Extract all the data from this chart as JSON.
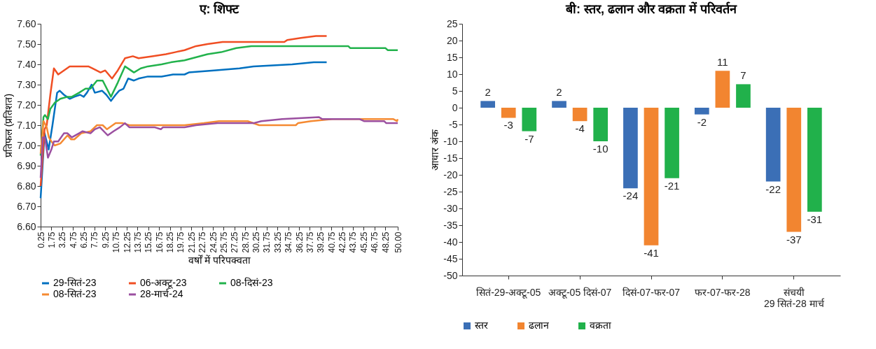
{
  "chart_data": [
    {
      "type": "line",
      "title": "ए: शिफ्ट",
      "xlabel": "वर्षों में परिपक्वता",
      "ylabel": "प्रतिफल (प्रतिशत)",
      "xlim": [
        0.25,
        50
      ],
      "xticks": [
        0.25,
        1.75,
        3.25,
        4.75,
        6.25,
        7.75,
        9.25,
        10.75,
        12.25,
        13.75,
        15.25,
        16.75,
        18.25,
        19.75,
        21.25,
        22.75,
        24.25,
        25.75,
        27.25,
        28.75,
        30.25,
        31.75,
        33.25,
        34.75,
        36.25,
        37.75,
        39.25,
        40.75,
        42.25,
        43.75,
        45.25,
        46.75,
        48.25,
        {
          "value": 50,
          "label": "50.00"
        }
      ],
      "ylim": [
        6.6,
        7.6
      ],
      "yticks": [
        {
          "value": 6.6,
          "label": "6.60"
        },
        {
          "value": 6.7,
          "label": "6.70"
        },
        {
          "value": 6.8,
          "label": "6.80"
        },
        {
          "value": 6.9,
          "label": "6.90"
        },
        {
          "value": 7.0,
          "label": "7.00"
        },
        {
          "value": 7.1,
          "label": "7.10"
        },
        {
          "value": 7.2,
          "label": "7.20"
        },
        {
          "value": 7.3,
          "label": "7.30"
        },
        {
          "value": 7.4,
          "label": "7.40"
        },
        {
          "value": 7.5,
          "label": "7.50"
        },
        {
          "value": 7.6,
          "label": "7.60"
        }
      ],
      "grid": false,
      "legend": "bottom",
      "series": [
        {
          "name": "29-सितं-23",
          "color": "#0070c0",
          "x": [
            0.25,
            0.8,
            1.37,
            1.9,
            2.55,
            2.9,
            3.5,
            4.3,
            4.95,
            5.75,
            6.25,
            6.7,
            7.35,
            7.8,
            8.8,
            9.4,
            10.05,
            10.7,
            11.2,
            11.8,
            12.45,
            13.25,
            13.9,
            15.2,
            17.1,
            18.7,
            20.3,
            20.9,
            24.4,
            27.96,
            29.9,
            35.3,
            38.3,
            40.1
          ],
          "values": [
            6.74,
            7.06,
            6.98,
            7.1,
            7.26,
            7.27,
            7.25,
            7.23,
            7.24,
            7.25,
            7.24,
            7.26,
            7.3,
            7.26,
            7.27,
            7.25,
            7.22,
            7.25,
            7.27,
            7.28,
            7.33,
            7.32,
            7.33,
            7.34,
            7.34,
            7.35,
            7.35,
            7.36,
            7.37,
            7.38,
            7.39,
            7.4,
            7.41,
            7.41
          ]
        },
        {
          "name": "06-अक्टू-23",
          "color": "#f04e23",
          "x": [
            0.25,
            0.8,
            1.1,
            1.6,
            2.1,
            2.7,
            3.5,
            4.3,
            6.9,
            7.5,
            8.6,
            9.25,
            10.2,
            11.0,
            12.0,
            13.1,
            13.9,
            15.8,
            17.7,
            19.0,
            20.3,
            21.9,
            23.5,
            25.6,
            34.2,
            34.6,
            36.5,
            38.6,
            40.1
          ],
          "values": [
            6.8,
            7.08,
            7.1,
            7.25,
            7.38,
            7.35,
            7.37,
            7.39,
            7.39,
            7.38,
            7.36,
            7.37,
            7.33,
            7.37,
            7.43,
            7.44,
            7.43,
            7.44,
            7.45,
            7.46,
            7.47,
            7.49,
            7.5,
            7.51,
            7.51,
            7.52,
            7.53,
            7.54,
            7.54
          ]
        },
        {
          "name": "08-दिसं-23",
          "color": "#22b24c",
          "x": [
            0.25,
            0.65,
            0.85,
            1.27,
            1.6,
            2.2,
            3.0,
            4.0,
            4.6,
            5.6,
            6.5,
            7.2,
            8.1,
            8.9,
            10.05,
            11.0,
            12.0,
            13.25,
            14.2,
            15.2,
            17.1,
            18.4,
            20.3,
            23.5,
            25.4,
            27.5,
            29.6,
            43.1,
            43.4,
            44.1,
            48.3,
            48.6,
            48.9,
            50
          ],
          "values": [
            6.95,
            7.14,
            7.15,
            7.13,
            7.18,
            7.21,
            7.23,
            7.24,
            7.24,
            7.26,
            7.28,
            7.28,
            7.32,
            7.32,
            7.24,
            7.31,
            7.39,
            7.36,
            7.38,
            7.39,
            7.4,
            7.41,
            7.42,
            7.45,
            7.46,
            7.48,
            7.49,
            7.49,
            7.48,
            7.48,
            7.48,
            7.47,
            7.47,
            7.47
          ]
        },
        {
          "name": "08-सितं-23",
          "color": "#f58a32",
          "x": [
            0.25,
            0.65,
            1.1,
            1.4,
            1.75,
            2.2,
            3.0,
            4.0,
            4.5,
            4.95,
            5.9,
            7.2,
            8.1,
            8.9,
            9.5,
            10.7,
            11.7,
            12.6,
            20.3,
            23.0,
            25.1,
            29.1,
            30.7,
            35.8,
            36.1,
            37.9,
            40.9,
            49.4,
            49.9,
            50
          ],
          "values": [
            6.96,
            7.12,
            7.09,
            7.04,
            7.02,
            7.0,
            7.01,
            7.05,
            7.03,
            7.03,
            7.06,
            7.07,
            7.1,
            7.1,
            7.08,
            7.11,
            7.11,
            7.1,
            7.1,
            7.11,
            7.12,
            7.12,
            7.1,
            7.1,
            7.11,
            7.12,
            7.13,
            7.13,
            7.12,
            7.13
          ]
        },
        {
          "name": "28-मार्च-24",
          "color": "#9b4fa0",
          "x": [
            0.25,
            0.55,
            0.85,
            1.27,
            1.75,
            2.1,
            2.7,
            3.5,
            4.0,
            4.6,
            5.6,
            6.1,
            7.2,
            7.8,
            8.5,
            9.6,
            10.4,
            11.3,
            12.0,
            12.6,
            16.1,
            17.0,
            17.3,
            20.3,
            21.9,
            24.9,
            29.9,
            31.0,
            33.9,
            39.0,
            39.5,
            44.7,
            45.3,
            48.1,
            48.4,
            50
          ],
          "values": [
            6.84,
            7.04,
            7.04,
            6.94,
            6.98,
            7.02,
            7.02,
            7.06,
            7.06,
            7.04,
            7.06,
            7.07,
            7.06,
            7.08,
            7.09,
            7.05,
            7.07,
            7.09,
            7.11,
            7.09,
            7.09,
            7.08,
            7.09,
            7.09,
            7.1,
            7.11,
            7.11,
            7.12,
            7.13,
            7.14,
            7.13,
            7.13,
            7.12,
            7.12,
            7.11,
            7.11
          ]
        }
      ]
    },
    {
      "type": "bar",
      "title": "बी: स्तर, ढलान और वक्रता में परिवर्तन",
      "ylabel": "आधार अंक",
      "categories": [
        "सितं-29-अक्टू-05",
        "अक्टू-05 दिसं-07",
        "दिसं-07-फर-07",
        "फर-07-फर-28",
        "संचयी\n29 सितं-28 मार्च"
      ],
      "ylim": [
        -50,
        25
      ],
      "yticks": [
        -50,
        -45,
        -40,
        -35,
        -30,
        -25,
        -20,
        -15,
        -10,
        -5,
        0,
        5,
        10,
        15,
        20,
        25
      ],
      "grid": false,
      "legend": "bottom",
      "data_labels": true,
      "series": [
        {
          "name": "स्तर",
          "color": "#3b6fb6",
          "values": [
            2,
            2,
            -24,
            -2,
            -22
          ]
        },
        {
          "name": "ढलान",
          "color": "#f28530",
          "values": [
            -3,
            -4,
            -41,
            11,
            -37
          ]
        },
        {
          "name": "वक्रता",
          "color": "#21b14b",
          "values": [
            -7,
            -10,
            -21,
            7,
            -31
          ]
        }
      ]
    }
  ]
}
